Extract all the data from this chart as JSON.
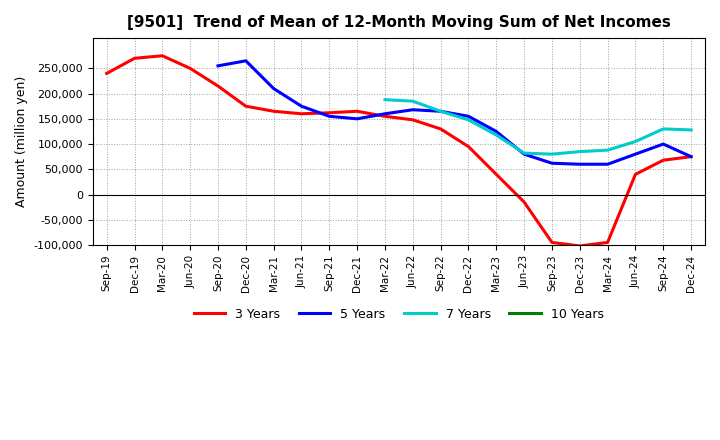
{
  "title": "[9501]  Trend of Mean of 12-Month Moving Sum of Net Incomes",
  "ylabel": "Amount (million yen)",
  "ylim": [
    -100000,
    310000
  ],
  "yticks": [
    -100000,
    -50000,
    0,
    50000,
    100000,
    150000,
    200000,
    250000
  ],
  "background_color": "#ffffff",
  "grid_color": "#aaaaaa",
  "x_labels": [
    "Sep-19",
    "Dec-19",
    "Mar-20",
    "Jun-20",
    "Sep-20",
    "Dec-20",
    "Mar-21",
    "Jun-21",
    "Sep-21",
    "Dec-21",
    "Mar-22",
    "Jun-22",
    "Sep-22",
    "Dec-22",
    "Mar-23",
    "Jun-23",
    "Sep-23",
    "Dec-23",
    "Mar-24",
    "Jun-24",
    "Sep-24",
    "Dec-24"
  ],
  "series": {
    "3 Years": {
      "color": "#ff0000",
      "data": [
        240000,
        270000,
        275000,
        250000,
        215000,
        175000,
        165000,
        160000,
        162000,
        165000,
        155000,
        148000,
        130000,
        95000,
        40000,
        -15000,
        -95000,
        -102000,
        -95000,
        40000,
        68000,
        75000
      ]
    },
    "5 Years": {
      "color": "#0000ff",
      "data": [
        null,
        null,
        null,
        null,
        255000,
        265000,
        210000,
        175000,
        155000,
        150000,
        160000,
        168000,
        165000,
        155000,
        125000,
        80000,
        62000,
        60000,
        60000,
        80000,
        100000,
        75000
      ]
    },
    "7 Years": {
      "color": "#00cccc",
      "data": [
        null,
        null,
        null,
        null,
        null,
        null,
        null,
        null,
        null,
        null,
        188000,
        185000,
        165000,
        148000,
        118000,
        82000,
        80000,
        85000,
        88000,
        105000,
        130000,
        128000
      ]
    },
    "10 Years": {
      "color": "#008000",
      "data": [
        null,
        null,
        null,
        null,
        null,
        null,
        null,
        null,
        null,
        null,
        null,
        null,
        null,
        null,
        null,
        null,
        null,
        null,
        null,
        null,
        null,
        null
      ]
    }
  }
}
